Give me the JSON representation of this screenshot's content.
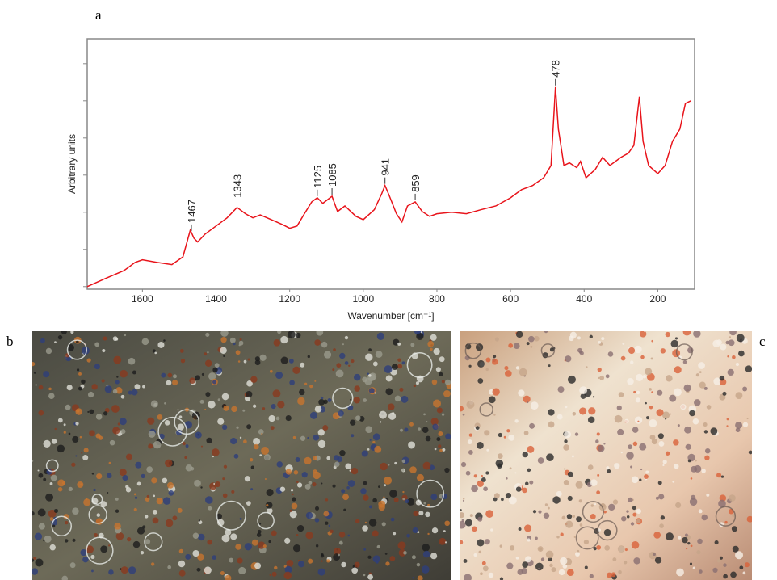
{
  "panel_labels": [
    "a",
    "b",
    "c"
  ],
  "chart_data": {
    "type": "line",
    "x_label": "Wavenumber [cm⁻¹]",
    "y_label": "Arbitrary units",
    "xlim": [
      1750,
      100
    ],
    "xticks": [
      1600,
      1400,
      1200,
      1000,
      800,
      600,
      400,
      200
    ],
    "ylim": [
      -0.07,
      6.67
    ],
    "yticks": [
      0,
      1,
      2,
      3,
      4,
      5,
      6
    ],
    "y_tick_labels": false,
    "peaks": [
      1467,
      1343,
      1125,
      1085,
      941,
      859,
      478
    ],
    "series": [
      {
        "color": "#e8141b",
        "x": [
          1750,
          1700,
          1650,
          1620,
          1600,
          1560,
          1520,
          1490,
          1470,
          1460,
          1450,
          1430,
          1400,
          1370,
          1343,
          1320,
          1300,
          1280,
          1250,
          1220,
          1200,
          1180,
          1160,
          1140,
          1125,
          1110,
          1085,
          1070,
          1050,
          1020,
          1000,
          970,
          950,
          941,
          930,
          910,
          895,
          880,
          859,
          840,
          820,
          800,
          760,
          720,
          680,
          640,
          600,
          570,
          540,
          510,
          490,
          478,
          470,
          455,
          440,
          420,
          410,
          395,
          370,
          350,
          330,
          300,
          280,
          265,
          250,
          240,
          225,
          200,
          180,
          160,
          140,
          125,
          110
        ],
        "values": [
          0,
          0.22,
          0.43,
          0.65,
          0.72,
          0.65,
          0.59,
          0.8,
          1.52,
          1.3,
          1.2,
          1.41,
          1.63,
          1.85,
          2.13,
          1.96,
          1.85,
          1.93,
          1.8,
          1.67,
          1.57,
          1.63,
          1.96,
          2.28,
          2.39,
          2.24,
          2.43,
          2.02,
          2.17,
          1.89,
          1.8,
          2.07,
          2.5,
          2.72,
          2.46,
          1.96,
          1.74,
          2.17,
          2.28,
          2.02,
          1.89,
          1.96,
          2.0,
          1.96,
          2.07,
          2.17,
          2.39,
          2.61,
          2.72,
          2.93,
          3.26,
          5.37,
          4.24,
          3.26,
          3.33,
          3.2,
          3.37,
          2.93,
          3.15,
          3.48,
          3.26,
          3.48,
          3.59,
          3.8,
          5.11,
          3.91,
          3.26,
          3.04,
          3.26,
          3.91,
          4.24,
          4.93,
          5.0
        ]
      }
    ]
  }
}
